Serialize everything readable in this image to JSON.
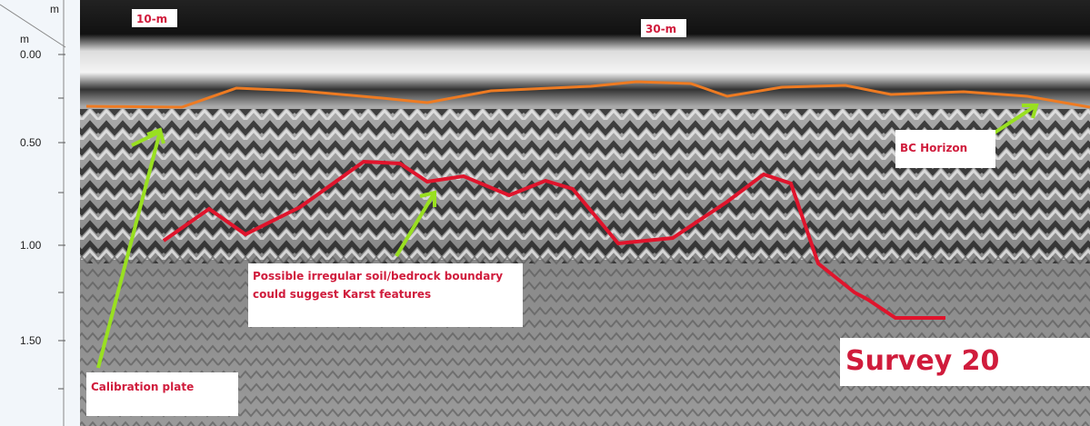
{
  "depth_axis": {
    "unit_top": "m",
    "unit_left": "m",
    "labels": [
      "0.00",
      "0.50",
      "1.00",
      "1.50"
    ]
  },
  "distance_markers": [
    "10-m",
    "30-m"
  ],
  "annotations": {
    "bc_horizon": "BC Horizon",
    "boundary": "Possible irregular soil/bedrock boundary could suggest Karst features",
    "calibration": "Calibration plate",
    "survey": "Survey 20"
  }
}
